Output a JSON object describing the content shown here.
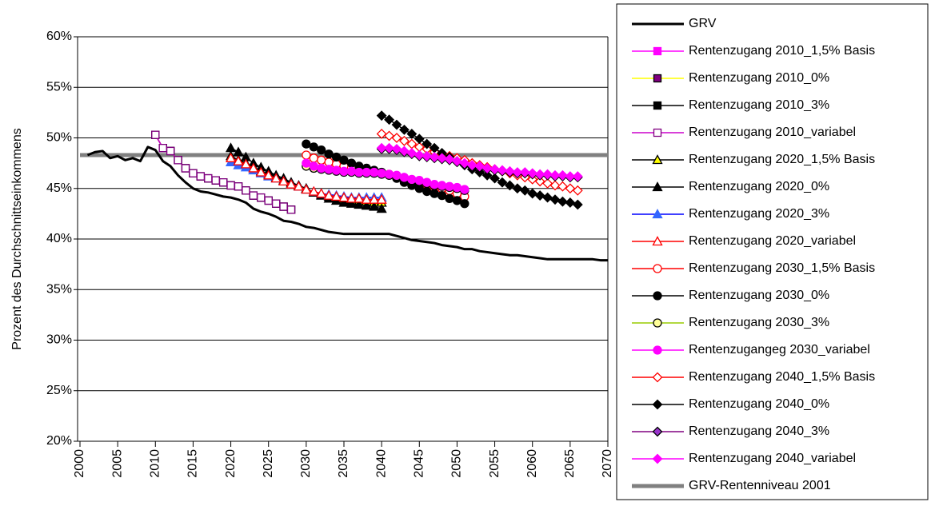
{
  "chart_data": {
    "type": "line",
    "y_label": "Prozent des Durchschnittseinkommens",
    "xlim": [
      2000,
      2070
    ],
    "xticks": [
      2000,
      2005,
      2010,
      2015,
      2020,
      2025,
      2030,
      2035,
      2040,
      2045,
      2050,
      2055,
      2060,
      2065,
      2070
    ],
    "ylim": [
      20,
      60
    ],
    "yticks": [
      {
        "value": 20,
        "label": "20%"
      },
      {
        "value": 25,
        "label": "25%"
      },
      {
        "value": 30,
        "label": "30%"
      },
      {
        "value": 35,
        "label": "35%"
      },
      {
        "value": 40,
        "label": "40%"
      },
      {
        "value": 45,
        "label": "45%"
      },
      {
        "value": 50,
        "label": "50%"
      },
      {
        "value": 55,
        "label": "55%"
      },
      {
        "value": 60,
        "label": "60%"
      }
    ],
    "grid": true,
    "legend": "right",
    "series": [
      {
        "name": "GRV",
        "color": "#000000",
        "width": 3,
        "marker": "none",
        "x": [
          2001,
          2002,
          2003,
          2004,
          2005,
          2006,
          2007,
          2008,
          2009,
          2010,
          2011,
          2012,
          2013,
          2014,
          2015,
          2016,
          2017,
          2018,
          2019,
          2020,
          2021,
          2022,
          2023,
          2024,
          2025,
          2026,
          2027,
          2028,
          2029,
          2030,
          2031,
          2032,
          2033,
          2034,
          2035,
          2036,
          2037,
          2038,
          2039,
          2040,
          2041,
          2042,
          2043,
          2044,
          2045,
          2046,
          2047,
          2048,
          2049,
          2050,
          2051,
          2052,
          2053,
          2054,
          2055,
          2056,
          2057,
          2058,
          2059,
          2060,
          2061,
          2062,
          2063,
          2064,
          2065,
          2066,
          2067,
          2068,
          2069,
          2070
        ],
        "values": [
          48.3,
          48.6,
          48.7,
          48.0,
          48.2,
          47.8,
          48.0,
          47.7,
          49.1,
          48.8,
          47.7,
          47.2,
          46.3,
          45.6,
          45.0,
          44.7,
          44.6,
          44.4,
          44.2,
          44.1,
          43.9,
          43.6,
          43.0,
          42.7,
          42.5,
          42.2,
          41.8,
          41.7,
          41.5,
          41.2,
          41.1,
          40.9,
          40.7,
          40.6,
          40.5,
          40.5,
          40.5,
          40.5,
          40.5,
          40.5,
          40.5,
          40.3,
          40.1,
          39.9,
          39.8,
          39.7,
          39.6,
          39.4,
          39.3,
          39.2,
          39.0,
          39.0,
          38.8,
          38.7,
          38.6,
          38.5,
          38.4,
          38.4,
          38.3,
          38.2,
          38.1,
          38.0,
          38.0,
          38.0,
          38.0,
          38.0,
          38.0,
          38.0,
          37.9,
          37.9
        ]
      },
      {
        "name": "Rentenzugang 2010_1,5% Basis",
        "color": "#ff00ff",
        "width": 1.5,
        "marker": "square",
        "marker_color": "#ff00ff",
        "marker_fill": "#ff00ff",
        "x": [
          2010,
          2011,
          2012,
          2013,
          2014,
          2015,
          2016,
          2017,
          2018,
          2019,
          2020,
          2021,
          2022,
          2023,
          2024,
          2025,
          2026,
          2027,
          2028
        ],
        "values": [
          50.3,
          49.0,
          48.7,
          47.8,
          47.0,
          46.5,
          46.2,
          46.0,
          45.8,
          45.6,
          45.3,
          45.2,
          44.8,
          44.3,
          44.1,
          43.8,
          43.5,
          43.2,
          42.9
        ]
      },
      {
        "name": "Rentenzugang 2010_0%",
        "color": "#ffff00",
        "width": 1.5,
        "marker": "square",
        "marker_color": "#000000",
        "marker_fill": "#800080",
        "x": [
          2010,
          2011,
          2012,
          2013,
          2014,
          2015,
          2016,
          2017,
          2018,
          2019,
          2020,
          2021,
          2022,
          2023,
          2024,
          2025,
          2026,
          2027,
          2028
        ],
        "values": [
          50.3,
          49.0,
          48.7,
          47.8,
          47.0,
          46.5,
          46.2,
          46.0,
          45.8,
          45.6,
          45.3,
          45.2,
          44.8,
          44.3,
          44.1,
          43.8,
          43.5,
          43.2,
          42.9
        ]
      },
      {
        "name": "Rentenzugang 2010_3%",
        "color": "#000000",
        "width": 1.5,
        "marker": "square",
        "marker_color": "#000000",
        "marker_fill": "#000000",
        "x": [
          2010,
          2011,
          2012,
          2013,
          2014,
          2015,
          2016,
          2017,
          2018,
          2019,
          2020,
          2021,
          2022,
          2023,
          2024,
          2025,
          2026,
          2027,
          2028
        ],
        "values": [
          50.3,
          49.0,
          48.7,
          47.8,
          47.0,
          46.5,
          46.2,
          46.0,
          45.8,
          45.6,
          45.3,
          45.2,
          44.8,
          44.3,
          44.1,
          43.8,
          43.5,
          43.2,
          42.9
        ]
      },
      {
        "name": "Rentenzugang 2010_variabel",
        "color": "#cc00cc",
        "width": 1.5,
        "marker": "square",
        "marker_color": "#800080",
        "marker_fill": "#ffffff",
        "x": [
          2010,
          2011,
          2012,
          2013,
          2014,
          2015,
          2016,
          2017,
          2018,
          2019,
          2020,
          2021,
          2022,
          2023,
          2024,
          2025,
          2026,
          2027,
          2028
        ],
        "values": [
          50.3,
          49.0,
          48.7,
          47.8,
          47.0,
          46.5,
          46.2,
          46.0,
          45.8,
          45.6,
          45.3,
          45.2,
          44.8,
          44.3,
          44.1,
          43.8,
          43.5,
          43.2,
          42.9
        ]
      },
      {
        "name": "Rentenzugang 2020_1,5% Basis",
        "color": "#000000",
        "width": 1.5,
        "marker": "triangle",
        "marker_color": "#000000",
        "marker_fill": "#ffff00",
        "x": [
          2020,
          2021,
          2022,
          2023,
          2024,
          2025,
          2026,
          2027,
          2028,
          2029,
          2030,
          2031,
          2032,
          2033,
          2034,
          2035,
          2036,
          2037,
          2038,
          2039,
          2040
        ],
        "values": [
          48.2,
          47.8,
          47.5,
          47.1,
          46.7,
          46.4,
          46.1,
          45.8,
          45.5,
          45.2,
          44.9,
          44.6,
          44.4,
          44.2,
          44.0,
          43.9,
          43.8,
          43.7,
          43.7,
          43.6,
          43.6
        ]
      },
      {
        "name": "Rentenzugang 2020_0%",
        "color": "#000000",
        "width": 1.5,
        "marker": "triangle",
        "marker_color": "#000000",
        "marker_fill": "#000000",
        "x": [
          2020,
          2021,
          2022,
          2023,
          2024,
          2025,
          2026,
          2027,
          2028,
          2029,
          2030,
          2031,
          2032,
          2033,
          2034,
          2035,
          2036,
          2037,
          2038,
          2039,
          2040
        ],
        "values": [
          49.0,
          48.6,
          48.1,
          47.5,
          47.1,
          46.7,
          46.3,
          46.0,
          45.6,
          45.3,
          45.0,
          44.6,
          44.3,
          44.0,
          43.8,
          43.6,
          43.5,
          43.4,
          43.3,
          43.2,
          43.0
        ]
      },
      {
        "name": "Rentenzugang 2020_3%",
        "color": "#0000ff",
        "width": 1.5,
        "marker": "triangle",
        "marker_color": "#3366ff",
        "marker_fill": "#3366ff",
        "x": [
          2020,
          2021,
          2022,
          2023,
          2024,
          2025,
          2026,
          2027,
          2028,
          2029,
          2030,
          2031,
          2032,
          2033,
          2034,
          2035,
          2036,
          2037,
          2038,
          2039,
          2040
        ],
        "values": [
          47.6,
          47.3,
          47.1,
          46.8,
          46.5,
          46.2,
          46.0,
          45.7,
          45.4,
          45.2,
          44.9,
          44.7,
          44.5,
          44.4,
          44.3,
          44.2,
          44.1,
          44.1,
          44.1,
          44.1,
          44.1
        ]
      },
      {
        "name": "Rentenzugang 2020_variabel",
        "color": "#ff0000",
        "width": 1.5,
        "marker": "triangle",
        "marker_color": "#ff0000",
        "marker_fill": "#ffffff",
        "x": [
          2020,
          2021,
          2022,
          2023,
          2024,
          2025,
          2026,
          2027,
          2028,
          2029,
          2030,
          2031,
          2032,
          2033,
          2034,
          2035,
          2036,
          2037,
          2038,
          2039,
          2040
        ],
        "values": [
          48.0,
          47.7,
          47.4,
          47.0,
          46.6,
          46.3,
          46.0,
          45.7,
          45.4,
          45.2,
          44.9,
          44.7,
          44.5,
          44.3,
          44.2,
          44.1,
          44.0,
          44.0,
          43.9,
          43.9,
          43.9
        ]
      },
      {
        "name": "Rentenzugang 2030_1,5% Basis",
        "color": "#ff0000",
        "width": 1.5,
        "marker": "circle",
        "marker_color": "#ff0000",
        "marker_fill": "#ffffff",
        "x": [
          2030,
          2031,
          2032,
          2033,
          2034,
          2035,
          2036,
          2037,
          2038,
          2039,
          2040,
          2041,
          2042,
          2043,
          2044,
          2045,
          2046,
          2047,
          2048,
          2049,
          2050,
          2051
        ],
        "values": [
          48.3,
          48.0,
          47.8,
          47.6,
          47.4,
          47.2,
          47.0,
          46.9,
          46.8,
          46.6,
          46.5,
          46.4,
          46.2,
          46.0,
          45.8,
          45.6,
          45.4,
          45.2,
          45.0,
          44.8,
          44.5,
          44.2
        ]
      },
      {
        "name": "Rentenzugang 2030_0%",
        "color": "#000000",
        "width": 1.5,
        "marker": "circle",
        "marker_color": "#000000",
        "marker_fill": "#000000",
        "x": [
          2030,
          2031,
          2032,
          2033,
          2034,
          2035,
          2036,
          2037,
          2038,
          2039,
          2040,
          2041,
          2042,
          2043,
          2044,
          2045,
          2046,
          2047,
          2048,
          2049,
          2050,
          2051
        ],
        "values": [
          49.4,
          49.1,
          48.8,
          48.4,
          48.1,
          47.8,
          47.5,
          47.2,
          47.0,
          46.8,
          46.6,
          46.3,
          46.0,
          45.6,
          45.3,
          45.0,
          44.7,
          44.5,
          44.3,
          44.0,
          43.8,
          43.5
        ]
      },
      {
        "name": "Rentenzugang 2030_3%",
        "color": "#99cc00",
        "width": 1.5,
        "marker": "circle",
        "marker_color": "#000000",
        "marker_fill": "#ffff99",
        "x": [
          2030,
          2031,
          2032,
          2033,
          2034,
          2035,
          2036,
          2037,
          2038,
          2039,
          2040,
          2041,
          2042,
          2043,
          2044,
          2045,
          2046,
          2047,
          2048,
          2049,
          2050,
          2051
        ],
        "values": [
          47.2,
          47.0,
          46.9,
          46.8,
          46.7,
          46.6,
          46.6,
          46.5,
          46.5,
          46.5,
          46.4,
          46.3,
          46.2,
          46.0,
          45.8,
          45.7,
          45.5,
          45.3,
          45.2,
          45.1,
          45.0,
          44.8
        ]
      },
      {
        "name": "Rentenzugangeg 2030_variabel",
        "color": "#ff00ff",
        "width": 1.5,
        "marker": "circle",
        "marker_color": "#ff00ff",
        "marker_fill": "#ff00ff",
        "x": [
          2030,
          2031,
          2032,
          2033,
          2034,
          2035,
          2036,
          2037,
          2038,
          2039,
          2040,
          2041,
          2042,
          2043,
          2044,
          2045,
          2046,
          2047,
          2048,
          2049,
          2050,
          2051
        ],
        "values": [
          47.5,
          47.2,
          47.0,
          46.9,
          46.8,
          46.7,
          46.7,
          46.6,
          46.6,
          46.6,
          46.5,
          46.4,
          46.3,
          46.1,
          45.9,
          45.8,
          45.6,
          45.4,
          45.3,
          45.2,
          45.1,
          44.9
        ]
      },
      {
        "name": "Rentenzugang 2040_1,5% Basis",
        "color": "#ff0000",
        "width": 1.5,
        "marker": "diamond",
        "marker_color": "#ff0000",
        "marker_fill": "#ffffff",
        "x": [
          2040,
          2041,
          2042,
          2043,
          2044,
          2045,
          2046,
          2047,
          2048,
          2049,
          2050,
          2051,
          2052,
          2053,
          2054,
          2055,
          2056,
          2057,
          2058,
          2059,
          2060,
          2061,
          2062,
          2063,
          2064,
          2065,
          2066
        ],
        "values": [
          50.4,
          50.2,
          50.0,
          49.7,
          49.4,
          49.1,
          48.9,
          48.6,
          48.4,
          48.2,
          48.0,
          47.8,
          47.5,
          47.3,
          47.1,
          46.9,
          46.7,
          46.5,
          46.3,
          46.1,
          45.9,
          45.7,
          45.5,
          45.3,
          45.2,
          45.0,
          44.8
        ]
      },
      {
        "name": "Rentenzugang 2040_0%",
        "color": "#000000",
        "width": 1.5,
        "marker": "diamond",
        "marker_color": "#000000",
        "marker_fill": "#000000",
        "x": [
          2040,
          2041,
          2042,
          2043,
          2044,
          2045,
          2046,
          2047,
          2048,
          2049,
          2050,
          2051,
          2052,
          2053,
          2054,
          2055,
          2056,
          2057,
          2058,
          2059,
          2060,
          2061,
          2062,
          2063,
          2064,
          2065,
          2066
        ],
        "values": [
          52.2,
          51.8,
          51.3,
          50.8,
          50.4,
          49.9,
          49.4,
          49.0,
          48.5,
          48.1,
          47.7,
          47.3,
          46.9,
          46.6,
          46.3,
          46.0,
          45.6,
          45.3,
          45.0,
          44.8,
          44.5,
          44.3,
          44.1,
          43.9,
          43.7,
          43.6,
          43.4
        ]
      },
      {
        "name": "Rentenzugang 2040_3%",
        "color": "#800080",
        "width": 1.5,
        "marker": "diamond",
        "marker_color": "#000000",
        "marker_fill": "#9933cc",
        "x": [
          2040,
          2041,
          2042,
          2043,
          2044,
          2045,
          2046,
          2047,
          2048,
          2049,
          2050,
          2051,
          2052,
          2053,
          2054,
          2055,
          2056,
          2057,
          2058,
          2059,
          2060,
          2061,
          2062,
          2063,
          2064,
          2065,
          2066
        ],
        "values": [
          48.9,
          48.9,
          48.8,
          48.6,
          48.4,
          48.2,
          48.1,
          48.0,
          47.9,
          47.8,
          47.6,
          47.4,
          47.2,
          47.1,
          46.9,
          46.8,
          46.7,
          46.6,
          46.5,
          46.5,
          46.4,
          46.3,
          46.3,
          46.2,
          46.2,
          46.1,
          46.1
        ]
      },
      {
        "name": "Rentenzugang 2040_variabel",
        "color": "#ff00ff",
        "width": 1.5,
        "marker": "diamond",
        "marker_color": "#ff00ff",
        "marker_fill": "#ff00ff",
        "x": [
          2040,
          2041,
          2042,
          2043,
          2044,
          2045,
          2046,
          2047,
          2048,
          2049,
          2050,
          2051,
          2052,
          2053,
          2054,
          2055,
          2056,
          2057,
          2058,
          2059,
          2060,
          2061,
          2062,
          2063,
          2064,
          2065,
          2066
        ],
        "values": [
          49.0,
          49.0,
          48.9,
          48.7,
          48.5,
          48.3,
          48.2,
          48.1,
          48.0,
          47.9,
          47.7,
          47.5,
          47.3,
          47.2,
          47.0,
          46.9,
          46.8,
          46.7,
          46.6,
          46.6,
          46.5,
          46.4,
          46.4,
          46.3,
          46.3,
          46.2,
          46.2
        ]
      },
      {
        "name": "GRV-Rentenniveau 2001",
        "color": "#808080",
        "width": 5,
        "marker": "none",
        "x": [
          2000,
          2070
        ],
        "values": [
          48.3,
          48.3
        ]
      }
    ]
  }
}
